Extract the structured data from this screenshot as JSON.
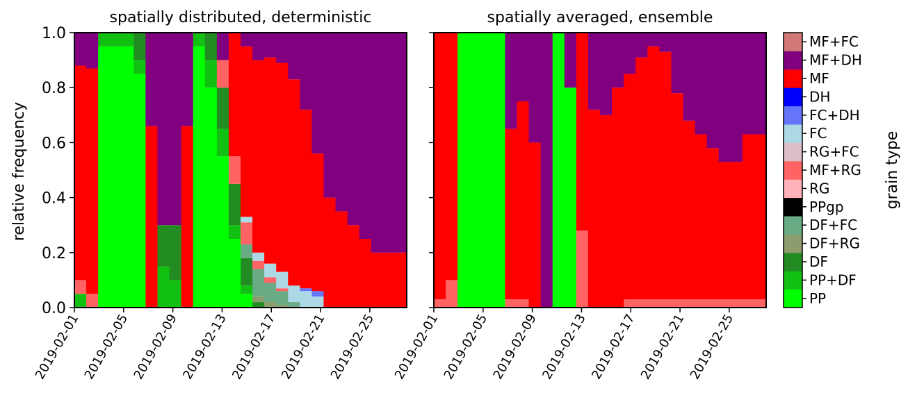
{
  "figure": {
    "ylabel": "relative frequency",
    "colorbar_label": "grain type"
  },
  "legend": {
    "labels": [
      "PP",
      "PP+DF",
      "DF",
      "DF+RG",
      "DF+FC",
      "PPgp",
      "RG",
      "MF+RG",
      "RG+FC",
      "FC",
      "FC+DH",
      "DH",
      "MF",
      "MF+DH",
      "MF+FC"
    ],
    "colors": [
      "#00ff00",
      "#12c012",
      "#228b22",
      "#8c9c6c",
      "#69ab84",
      "#000000",
      "#ffb2b9",
      "#ff6363",
      "#dcbec8",
      "#add8e6",
      "#6475fa",
      "#0000ff",
      "#ff0000",
      "#800080",
      "#d27878"
    ]
  },
  "chart_data": [
    {
      "type": "area",
      "title": "spatially distributed, deterministic",
      "ylabel": "relative frequency",
      "ylim": [
        0,
        1
      ],
      "yticks": [
        "0.0",
        "0.2",
        "0.4",
        "0.6",
        "0.8",
        "1.0"
      ],
      "xlim": [
        "2019-02-01",
        "2019-02-28"
      ],
      "xticks": [
        "2019-02-01",
        "2019-02-05",
        "2019-02-09",
        "2019-02-13",
        "2019-02-17",
        "2019-02-21",
        "2019-02-25"
      ],
      "x": [
        "2019-02-01",
        "2019-02-02",
        "2019-02-03",
        "2019-02-04",
        "2019-02-05",
        "2019-02-06",
        "2019-02-07",
        "2019-02-08",
        "2019-02-09",
        "2019-02-10",
        "2019-02-11",
        "2019-02-12",
        "2019-02-13",
        "2019-02-14",
        "2019-02-15",
        "2019-02-16",
        "2019-02-17",
        "2019-02-18",
        "2019-02-19",
        "2019-02-20",
        "2019-02-21",
        "2019-02-22",
        "2019-02-23",
        "2019-02-24",
        "2019-02-25",
        "2019-02-26",
        "2019-02-27",
        "2019-02-28"
      ],
      "series": [
        {
          "name": "PP",
          "values": [
            0,
            0,
            0.95,
            0.95,
            0.95,
            0.85,
            0,
            0,
            0,
            0,
            0.95,
            0.8,
            0.55,
            0.25,
            0.05,
            0,
            0,
            0,
            0,
            0,
            0,
            0,
            0,
            0,
            0,
            0,
            0,
            0
          ]
        },
        {
          "name": "PP+DF",
          "values": [
            0.05,
            0,
            0.05,
            0.05,
            0.05,
            0.05,
            0,
            0.15,
            0.1,
            0,
            0.05,
            0.1,
            0.1,
            0.05,
            0.03,
            0,
            0,
            0,
            0,
            0,
            0,
            0,
            0,
            0,
            0,
            0,
            0,
            0
          ]
        },
        {
          "name": "DF",
          "values": [
            0,
            0,
            0,
            0,
            0,
            0.1,
            0,
            0.15,
            0.2,
            0,
            0,
            0.1,
            0.15,
            0.15,
            0.1,
            0.02,
            0,
            0,
            0,
            0,
            0,
            0,
            0,
            0,
            0,
            0,
            0,
            0
          ]
        },
        {
          "name": "DF+RG",
          "values": [
            0,
            0,
            0,
            0,
            0,
            0,
            0,
            0,
            0,
            0,
            0,
            0,
            0,
            0,
            0,
            0.02,
            0.02,
            0.01,
            0,
            0,
            0,
            0,
            0,
            0,
            0,
            0,
            0,
            0
          ]
        },
        {
          "name": "DF+FC",
          "values": [
            0,
            0,
            0,
            0,
            0,
            0,
            0,
            0,
            0,
            0,
            0,
            0,
            0,
            0,
            0.05,
            0.1,
            0.07,
            0.05,
            0.02,
            0,
            0,
            0,
            0,
            0,
            0,
            0,
            0,
            0
          ]
        },
        {
          "name": "RG",
          "values": [
            0,
            0,
            0,
            0,
            0,
            0,
            0,
            0,
            0,
            0,
            0,
            0,
            0,
            0,
            0,
            0,
            0,
            0,
            0,
            0,
            0,
            0,
            0,
            0,
            0,
            0,
            0,
            0
          ]
        },
        {
          "name": "MF+RG",
          "values": [
            0.05,
            0.05,
            0,
            0,
            0,
            0,
            0,
            0,
            0,
            0,
            0,
            0,
            0.1,
            0.1,
            0.08,
            0.03,
            0.02,
            0.01,
            0,
            0,
            0,
            0,
            0,
            0,
            0,
            0,
            0,
            0
          ]
        },
        {
          "name": "FC",
          "values": [
            0,
            0,
            0,
            0,
            0,
            0,
            0,
            0,
            0,
            0,
            0,
            0,
            0,
            0,
            0.02,
            0.03,
            0.05,
            0.06,
            0.06,
            0.06,
            0.04,
            0,
            0,
            0,
            0,
            0,
            0,
            0
          ]
        },
        {
          "name": "FC+DH",
          "values": [
            0,
            0,
            0,
            0,
            0,
            0,
            0,
            0,
            0,
            0,
            0,
            0,
            0,
            0,
            0,
            0,
            0,
            0,
            0,
            0.01,
            0.02,
            0,
            0,
            0,
            0,
            0,
            0,
            0
          ]
        },
        {
          "name": "MF",
          "values": [
            0.78,
            0.82,
            0,
            0,
            0,
            0,
            0.66,
            0,
            0,
            0.66,
            0,
            0,
            0,
            0.55,
            0.62,
            0.7,
            0.75,
            0.76,
            0.75,
            0.65,
            0.5,
            0.4,
            0.35,
            0.3,
            0.25,
            0.2,
            0.2,
            0.2
          ]
        },
        {
          "name": "MF+DH",
          "values": [
            0.12,
            0.13,
            0,
            0,
            0,
            0,
            0.34,
            0.7,
            0.7,
            0.34,
            0,
            0,
            0.1,
            0.1,
            0.1,
            0.12,
            0.16,
            0.17,
            0.17,
            0.28,
            0.44,
            0.6,
            0.65,
            0.7,
            0.75,
            0.8,
            0.8,
            0.8
          ]
        }
      ]
    },
    {
      "type": "area",
      "title": "spatially averaged, ensemble",
      "ylim": [
        0,
        1
      ],
      "xlim": [
        "2019-02-01",
        "2019-02-28"
      ],
      "xticks": [
        "2019-02-01",
        "2019-02-05",
        "2019-02-09",
        "2019-02-13",
        "2019-02-17",
        "2019-02-21",
        "2019-02-25"
      ],
      "x": [
        "2019-02-01",
        "2019-02-02",
        "2019-02-03",
        "2019-02-04",
        "2019-02-05",
        "2019-02-06",
        "2019-02-07",
        "2019-02-08",
        "2019-02-09",
        "2019-02-10",
        "2019-02-11",
        "2019-02-12",
        "2019-02-13",
        "2019-02-14",
        "2019-02-15",
        "2019-02-16",
        "2019-02-17",
        "2019-02-18",
        "2019-02-19",
        "2019-02-20",
        "2019-02-21",
        "2019-02-22",
        "2019-02-23",
        "2019-02-24",
        "2019-02-25",
        "2019-02-26",
        "2019-02-27",
        "2019-02-28"
      ],
      "series": [
        {
          "name": "PP",
          "values": [
            0,
            0,
            1,
            1,
            1,
            1,
            0,
            0,
            0,
            0,
            1,
            0.8,
            0,
            0,
            0,
            0,
            0,
            0,
            0,
            0,
            0,
            0,
            0,
            0,
            0,
            0,
            0,
            0
          ]
        },
        {
          "name": "MF+RG",
          "values": [
            0.03,
            0.1,
            0,
            0,
            0,
            0,
            0.03,
            0.03,
            0,
            0,
            0,
            0,
            0.28,
            0,
            0,
            0,
            0.03,
            0.03,
            0.03,
            0.03,
            0.03,
            0.03,
            0.03,
            0.03,
            0.03,
            0.03,
            0.03,
            0.03
          ]
        },
        {
          "name": "MF",
          "values": [
            0.97,
            0.9,
            0,
            0,
            0,
            0,
            0.62,
            0.72,
            0.6,
            0,
            0,
            0,
            0.72,
            0.72,
            0.7,
            0.8,
            0.82,
            0.88,
            0.92,
            0.9,
            0.75,
            0.65,
            0.6,
            0.55,
            0.5,
            0.5,
            0.6,
            0.6
          ]
        },
        {
          "name": "MF+DH",
          "values": [
            0,
            0,
            0,
            0,
            0,
            0,
            0.35,
            0.25,
            0.4,
            1,
            0,
            0.2,
            0,
            0.28,
            0.3,
            0.2,
            0.15,
            0.09,
            0.05,
            0.07,
            0.22,
            0.32,
            0.37,
            0.42,
            0.47,
            0.47,
            0.37,
            0.37
          ]
        }
      ]
    }
  ]
}
